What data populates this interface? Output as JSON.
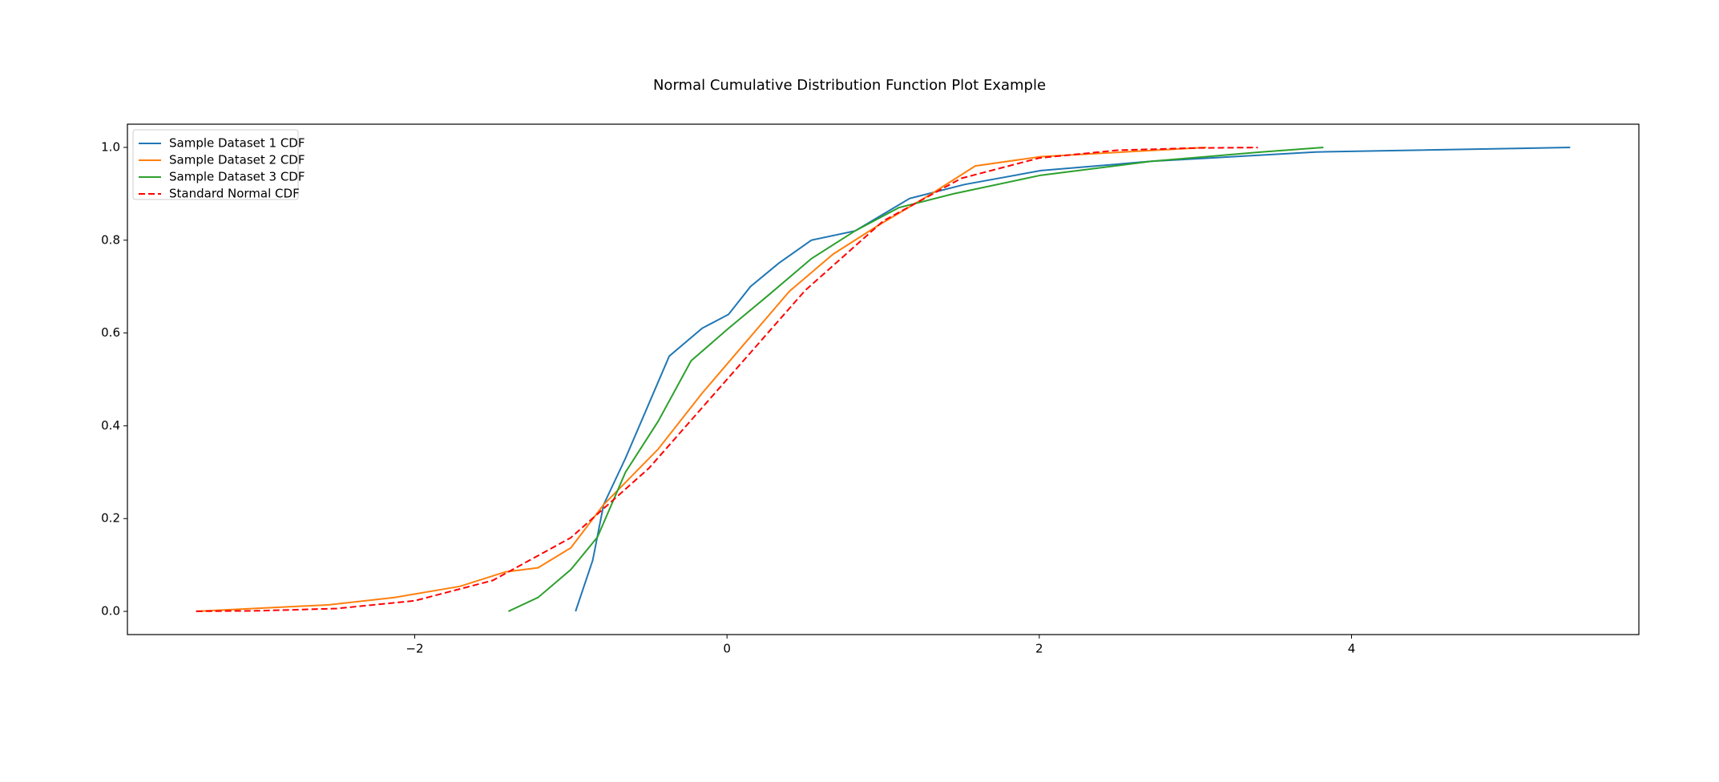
{
  "chart_data": {
    "type": "line",
    "title": "Normal Cumulative Distribution Function Plot Example",
    "xlim": [
      -3.84,
      5.84
    ],
    "ylim": [
      -0.05,
      1.05
    ],
    "xticks": [
      {
        "value": -2,
        "label": "−2"
      },
      0,
      2,
      4
    ],
    "yticks": [
      {
        "value": 0,
        "label": "0.0"
      },
      0.2,
      0.4,
      0.6,
      0.8,
      {
        "value": 1,
        "label": "1.0"
      }
    ],
    "legend": "upper-left",
    "series": [
      {
        "name": "Sample Dataset 1 CDF",
        "color": "#1f77b4",
        "linestyle": "solid",
        "x": [
          -0.97,
          -0.86,
          -0.79,
          -0.65,
          -0.51,
          -0.37,
          -0.16,
          0.01,
          0.15,
          0.33,
          0.54,
          0.82,
          1.17,
          1.52,
          2.01,
          2.72,
          3.77,
          5.4
        ],
        "values": [
          0,
          0.11,
          0.23,
          0.33,
          0.44,
          0.55,
          0.61,
          0.64,
          0.7,
          0.75,
          0.8,
          0.82,
          0.89,
          0.92,
          0.95,
          0.97,
          0.99,
          1.0
        ]
      },
      {
        "name": "Sample Dataset 2 CDF",
        "color": "#ff7f0e",
        "linestyle": "solid",
        "x": [
          -3.4,
          -2.55,
          -2.13,
          -1.71,
          -1.42,
          -1.21,
          -1.0,
          -0.79,
          -0.44,
          -0.16,
          0.12,
          0.4,
          0.68,
          0.96,
          1.31,
          1.59,
          2.01,
          3.07
        ],
        "values": [
          0,
          0.014,
          0.03,
          0.054,
          0.085,
          0.094,
          0.137,
          0.23,
          0.35,
          0.47,
          0.58,
          0.69,
          0.77,
          0.83,
          0.9,
          0.96,
          0.98,
          1.0
        ]
      },
      {
        "name": "Sample Dataset 3 CDF",
        "color": "#2ca02c",
        "linestyle": "solid",
        "x": [
          -1.4,
          -1.21,
          -1.0,
          -0.83,
          -0.65,
          -0.44,
          -0.23,
          0.01,
          0.26,
          0.54,
          0.82,
          1.1,
          1.45,
          2.01,
          2.72,
          3.42,
          3.82
        ],
        "values": [
          0,
          0.03,
          0.09,
          0.16,
          0.3,
          0.41,
          0.54,
          0.61,
          0.68,
          0.76,
          0.82,
          0.87,
          0.9,
          0.94,
          0.97,
          0.99,
          1.0
        ]
      },
      {
        "name": "Standard Normal CDF",
        "color": "#ff0000",
        "linestyle": "dashed",
        "x": [
          -3.4,
          -3,
          -2.5,
          -2,
          -1.5,
          -1,
          -0.5,
          0,
          0.5,
          1,
          1.5,
          2,
          2.5,
          3,
          3.4
        ],
        "values": [
          0.0003,
          0.0013,
          0.0062,
          0.0228,
          0.0668,
          0.1587,
          0.3085,
          0.5,
          0.6915,
          0.8413,
          0.9332,
          0.9772,
          0.9938,
          0.9987,
          0.9997
        ]
      }
    ]
  }
}
